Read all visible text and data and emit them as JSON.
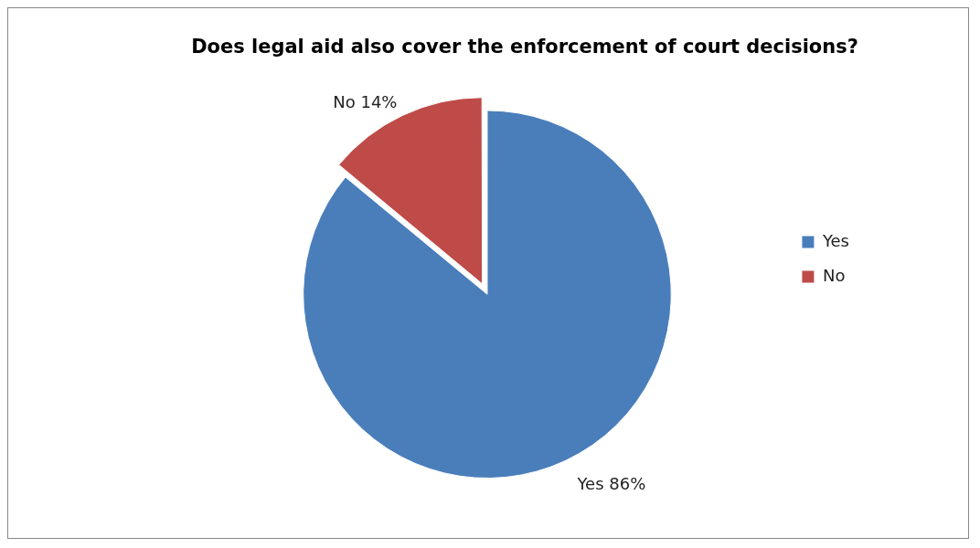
{
  "chart_data": {
    "type": "pie",
    "title": "Does legal aid also cover the enforcement of court decisions?",
    "categories": [
      "Yes",
      "No"
    ],
    "values": [
      86,
      14
    ],
    "colors": [
      "#4a7ebb",
      "#be4b48"
    ],
    "value_labels": [
      "Yes 86%",
      "No 14%"
    ],
    "legend": "right"
  }
}
